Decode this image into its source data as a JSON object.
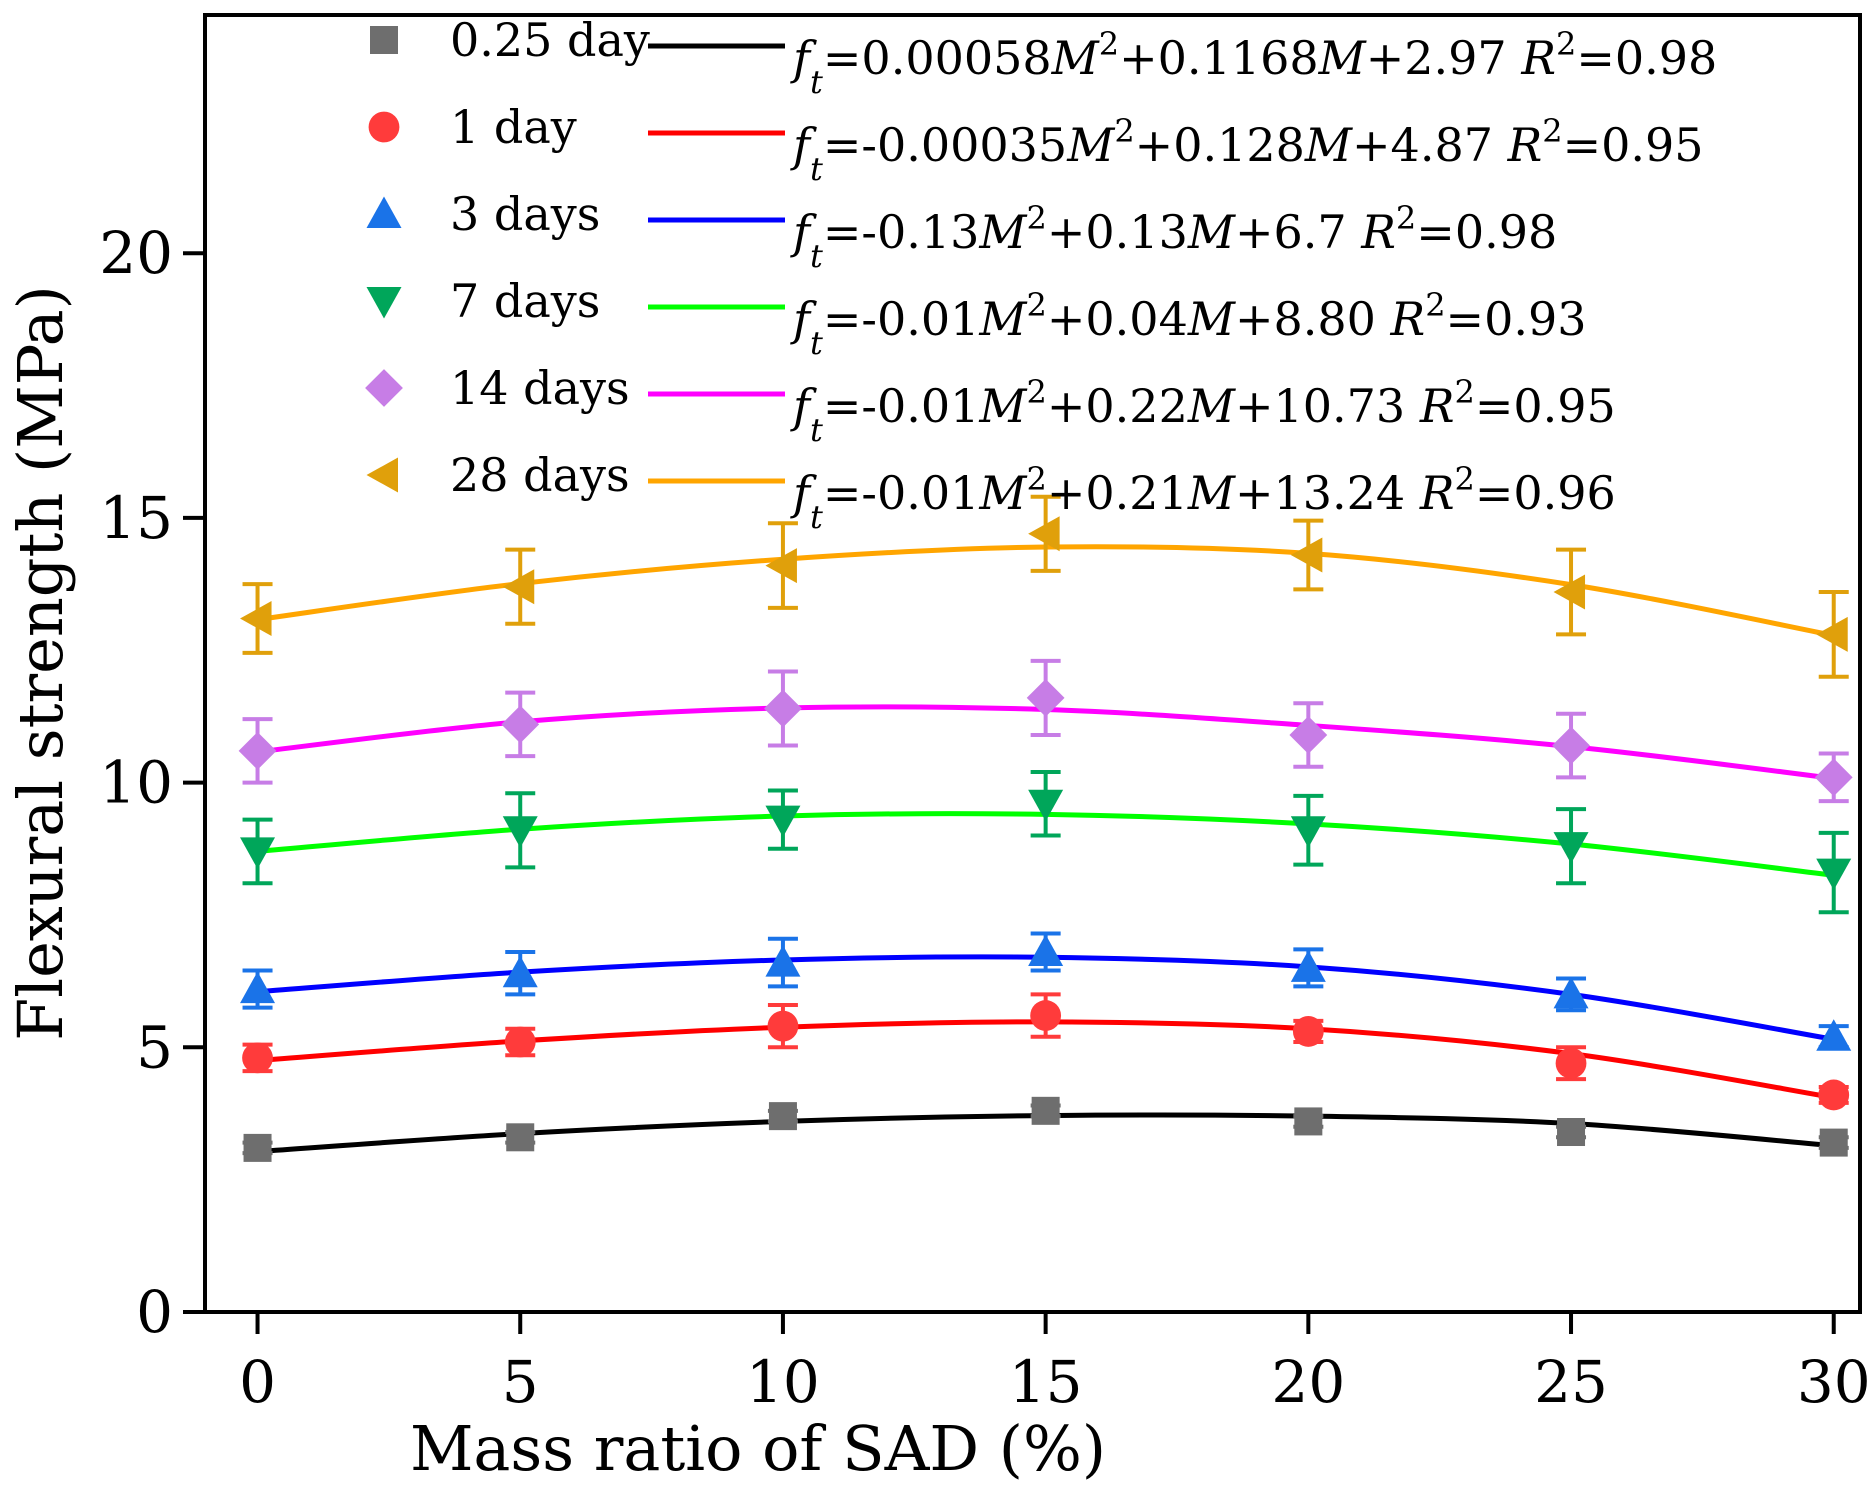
{
  "chart_data": {
    "type": "scatter",
    "xlabel": "Mass ratio of SAD (%)",
    "ylabel": "Flexural strength (MPa)",
    "xlim": [
      -1,
      30.5
    ],
    "ylim": [
      0,
      24.5
    ],
    "xticks": [
      0,
      5,
      10,
      15,
      20,
      25,
      30
    ],
    "yticks": [
      0,
      5,
      10,
      15,
      20
    ],
    "x": [
      0,
      5,
      10,
      15,
      20,
      25,
      30
    ],
    "series": [
      {
        "name": "0.25 day",
        "marker": "square",
        "marker_color": "#6e6e6e",
        "line_color": "#000000",
        "values": [
          3.1,
          3.3,
          3.7,
          3.8,
          3.6,
          3.4,
          3.2
        ],
        "errors": [
          0.1,
          0.1,
          0.1,
          0.1,
          0.1,
          0.1,
          0.1
        ],
        "fit": [
          3.03,
          3.37,
          3.6,
          3.71,
          3.7,
          3.56,
          3.14
        ],
        "equation": {
          "var": "f",
          "sub": "t",
          "body": "=0.00058",
          "m2": "M",
          "sq": "2",
          "mid": "+0.1168",
          "m1": "M",
          "tail": "+2.97 ",
          "r": "R",
          "rsq": "2",
          "rval": "=0.98"
        }
      },
      {
        "name": "1 day",
        "marker": "circle",
        "marker_color": "#ff3b3b",
        "line_color": "#ff0000",
        "values": [
          4.8,
          5.1,
          5.4,
          5.6,
          5.3,
          4.7,
          4.1
        ],
        "errors": [
          0.25,
          0.25,
          0.4,
          0.4,
          0.2,
          0.3,
          0.15
        ],
        "fit": [
          4.75,
          5.12,
          5.38,
          5.48,
          5.35,
          4.88,
          4.05
        ],
        "equation": {
          "var": "f",
          "sub": "t",
          "body": "=-0.00035",
          "m2": "M",
          "sq": "2",
          "mid": "+0.128",
          "m1": "M",
          "tail": "+4.87 ",
          "r": "R",
          "rsq": "2",
          "rval": "=0.95"
        }
      },
      {
        "name": "3 days",
        "marker": "triangle-up",
        "marker_color": "#1a73e8",
        "line_color": "#0000ff",
        "values": [
          6.1,
          6.4,
          6.6,
          6.8,
          6.5,
          6.0,
          5.2
        ],
        "errors": [
          0.35,
          0.4,
          0.45,
          0.35,
          0.35,
          0.3,
          0.2
        ],
        "fit": [
          6.05,
          6.42,
          6.65,
          6.7,
          6.52,
          6.0,
          5.15
        ],
        "equation": {
          "var": "f",
          "sub": "t",
          "body": "=-0.13",
          "m2": "M",
          "sq": "2",
          "mid": "+0.13",
          "m1": "M",
          "tail": "+6.7 ",
          "r": "R",
          "rsq": "2",
          "rval": "=0.98"
        }
      },
      {
        "name": "7 days",
        "marker": "triangle-down",
        "marker_color": "#00a65a",
        "line_color": "#00ff00",
        "values": [
          8.7,
          9.1,
          9.3,
          9.6,
          9.1,
          8.8,
          8.3
        ],
        "errors": [
          0.6,
          0.7,
          0.55,
          0.6,
          0.65,
          0.7,
          0.75
        ],
        "fit": [
          8.7,
          9.12,
          9.37,
          9.4,
          9.22,
          8.84,
          8.25
        ],
        "equation": {
          "var": "f",
          "sub": "t",
          "body": "=-0.01",
          "m2": "M",
          "sq": "2",
          "mid": "+0.04",
          "m1": "M",
          "tail": "+8.80 ",
          "r": "R",
          "rsq": "2",
          "rval": "=0.93"
        }
      },
      {
        "name": "14 days",
        "marker": "diamond",
        "marker_color": "#c77de6",
        "line_color": "#ff00ff",
        "values": [
          10.6,
          11.1,
          11.4,
          11.6,
          10.9,
          10.7,
          10.1
        ],
        "errors": [
          0.6,
          0.6,
          0.7,
          0.7,
          0.6,
          0.6,
          0.45
        ],
        "fit": [
          10.58,
          11.15,
          11.41,
          11.38,
          11.08,
          10.68,
          10.08
        ],
        "equation": {
          "var": "f",
          "sub": "t",
          "body": "=-0.01",
          "m2": "M",
          "sq": "2",
          "mid": "+0.22",
          "m1": "M",
          "tail": "+10.73 ",
          "r": "R",
          "rsq": "2",
          "rval": "=0.95"
        }
      },
      {
        "name": "28 days",
        "marker": "triangle-left",
        "marker_color": "#e0a00b",
        "line_color": "#ffa500",
        "values": [
          13.1,
          13.7,
          14.1,
          14.7,
          14.3,
          13.6,
          12.8
        ],
        "errors": [
          0.65,
          0.7,
          0.8,
          0.7,
          0.65,
          0.8,
          0.8
        ],
        "fit": [
          13.08,
          13.76,
          14.22,
          14.45,
          14.33,
          13.74,
          12.78
        ],
        "equation": {
          "var": "f",
          "sub": "t",
          "body": "=-0.01",
          "m2": "M",
          "sq": "2",
          "mid": "+0.21",
          "m1": "M",
          "tail": "+13.24 ",
          "r": "R",
          "rsq": "2",
          "rval": "=0.96"
        }
      }
    ]
  }
}
